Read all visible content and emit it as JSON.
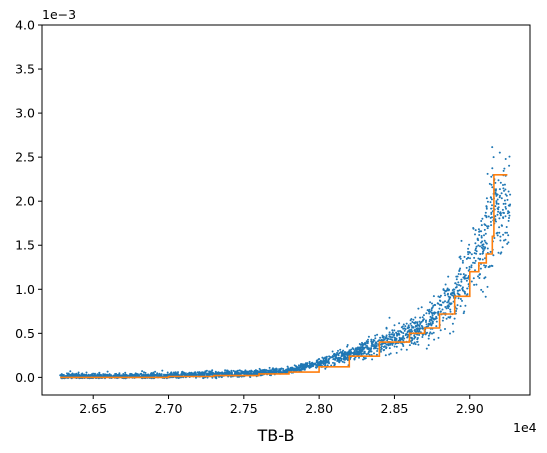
{
  "chart_data": {
    "type": "scatter",
    "xlabel": "TB-B",
    "ylabel": "",
    "x_offset_text": "1e4",
    "y_offset_text": "1e−3",
    "xlim": [
      26160,
      29400
    ],
    "ylim": [
      -0.0002,
      0.004
    ],
    "x_ticks": [
      26500,
      27000,
      27500,
      28000,
      28500,
      29000
    ],
    "x_tick_labels": [
      "2.65",
      "2.70",
      "2.75",
      "2.80",
      "2.85",
      "2.90"
    ],
    "y_ticks": [
      0,
      0.0005,
      0.001,
      0.0015,
      0.002,
      0.0025,
      0.003,
      0.0035,
      0.004
    ],
    "y_tick_labels": [
      "0.0",
      "0.5",
      "1.0",
      "1.5",
      "2.0",
      "2.5",
      "3.0",
      "3.5",
      "4.0"
    ],
    "grid": false,
    "series": [
      {
        "kind": "scatter",
        "color": "#1f77b4",
        "x_range": [
          26280,
          29270
        ],
        "point_count": 2600,
        "trend": [
          [
            26280,
            1e-05
          ],
          [
            26700,
            1e-05
          ],
          [
            27000,
            2e-05
          ],
          [
            27300,
            3e-05
          ],
          [
            27600,
            5e-05
          ],
          [
            27800,
            8e-05
          ],
          [
            28000,
            0.00016
          ],
          [
            28200,
            0.00026
          ],
          [
            28400,
            0.00038
          ],
          [
            28600,
            0.0005
          ],
          [
            28700,
            0.00058
          ],
          [
            28800,
            0.00072
          ],
          [
            28900,
            0.00092
          ],
          [
            29000,
            0.0012
          ],
          [
            29100,
            0.0015
          ],
          [
            29150,
            0.0019
          ],
          [
            29200,
            0.0019
          ],
          [
            29270,
            0.0019
          ]
        ]
      },
      {
        "kind": "step-line",
        "color": "#ff7f0e",
        "points": [
          [
            26280,
            0.0
          ],
          [
            26900,
            0.0
          ],
          [
            27000,
            1e-05
          ],
          [
            27300,
            2e-05
          ],
          [
            27600,
            4e-05
          ],
          [
            27800,
            6e-05
          ],
          [
            28000,
            0.00012
          ],
          [
            28200,
            0.00024
          ],
          [
            28400,
            0.0004
          ],
          [
            28600,
            0.0005
          ],
          [
            28700,
            0.00056
          ],
          [
            28800,
            0.00072
          ],
          [
            28900,
            0.00092
          ],
          [
            29000,
            0.0012
          ],
          [
            29060,
            0.0013
          ],
          [
            29110,
            0.0014
          ],
          [
            29150,
            0.0016
          ],
          [
            29160,
            0.0023
          ],
          [
            29250,
            0.0023
          ]
        ]
      }
    ]
  }
}
